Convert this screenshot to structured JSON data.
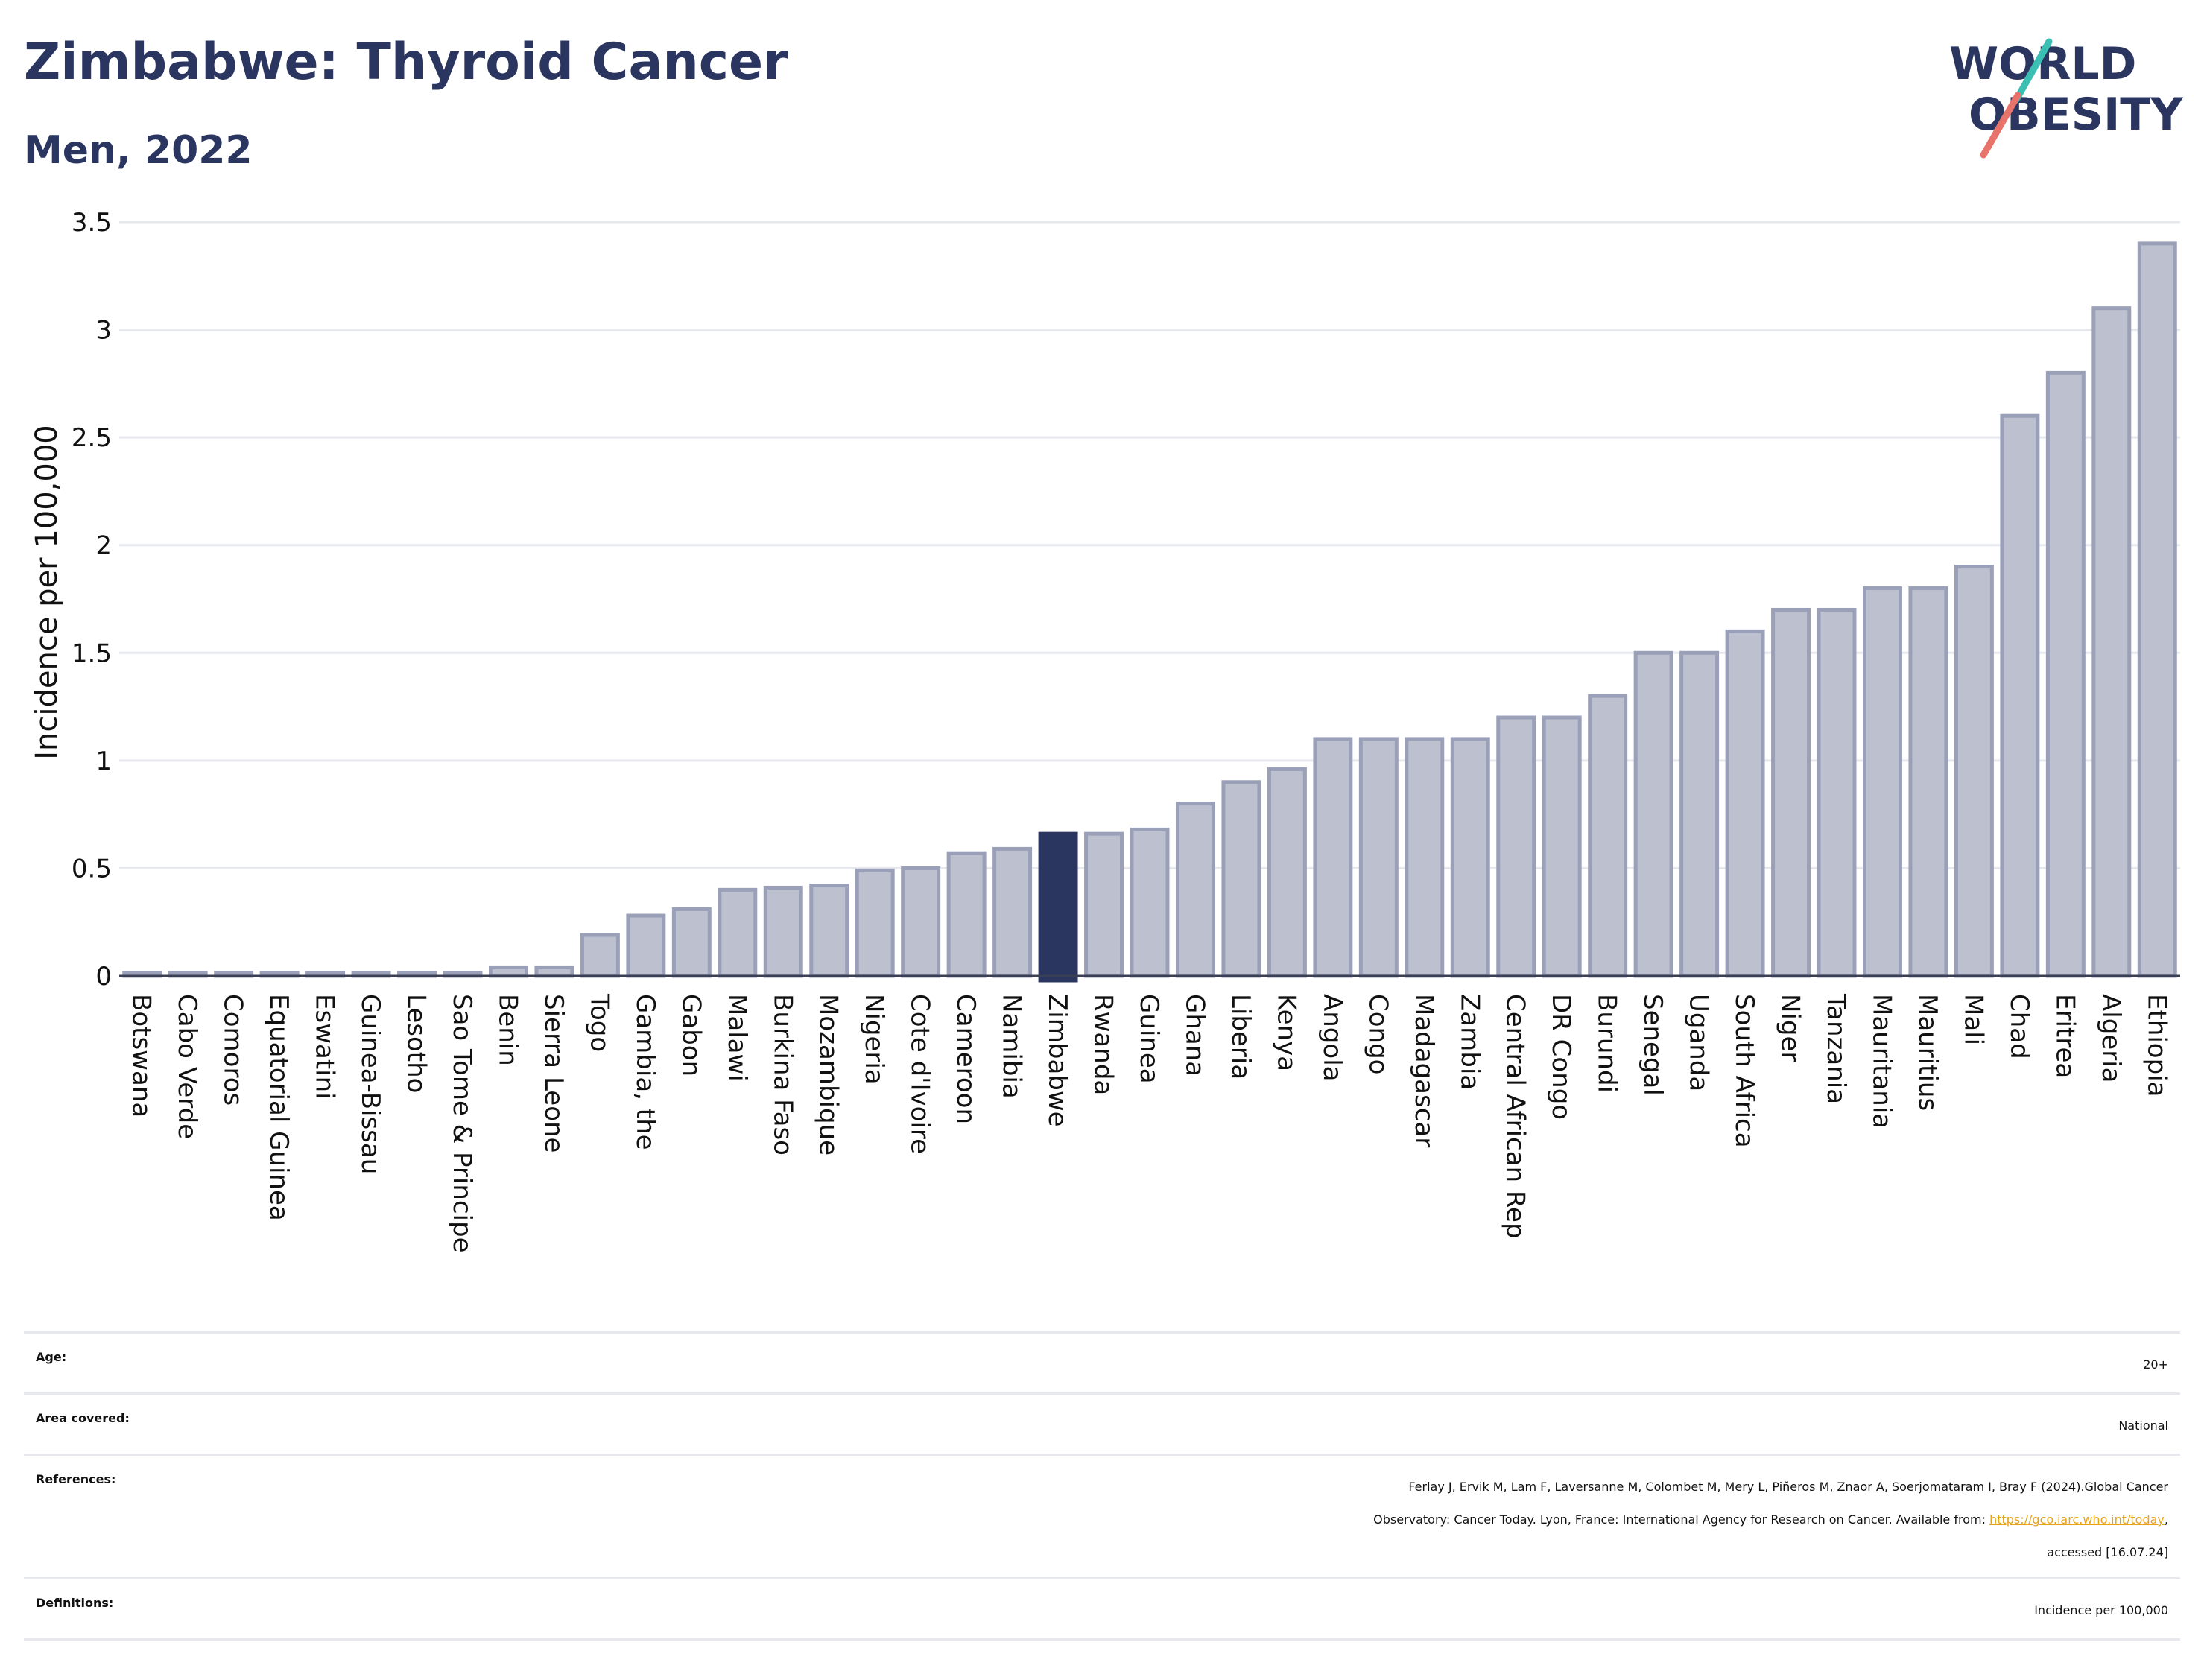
{
  "header": {
    "title": "Zimbabwe: Thyroid Cancer",
    "subtitle": "Men, 2022",
    "logo_line1": "WORLD",
    "logo_line2": "OBESITY"
  },
  "colors": {
    "title": "#2a3560",
    "bar": "#bcc0cf",
    "bar_border": "#9aa0b8",
    "highlight": "#2a3560",
    "logo_teal": "#3bbfb3",
    "logo_coral": "#e8736a",
    "link": "#e8a317"
  },
  "chart_data": {
    "type": "bar",
    "ylabel": "Incidence per 100,000",
    "ylim": [
      0,
      3.5
    ],
    "yticks": [
      "0",
      "0.5",
      "1",
      "1.5",
      "2",
      "2.5",
      "3",
      "3.5"
    ],
    "ytick_values": [
      0,
      0.5,
      1,
      1.5,
      2,
      2.5,
      3,
      3.5
    ],
    "grid": true,
    "highlight": "Zimbabwe",
    "categories": [
      "Botswana",
      "Cabo Verde",
      "Comoros",
      "Equatorial Guinea",
      "Eswatini",
      "Guinea-Bissau",
      "Lesotho",
      "Sao Tome & Principe",
      "Benin",
      "Sierra Leone",
      "Togo",
      "Gambia, the",
      "Gabon",
      "Malawi",
      "Burkina Faso",
      "Mozambique",
      "Nigeria",
      "Cote d'Ivoire",
      "Cameroon",
      "Namibia",
      "Zimbabwe",
      "Rwanda",
      "Guinea",
      "Ghana",
      "Liberia",
      "Kenya",
      "Angola",
      "Congo",
      "Madagascar",
      "Zambia",
      "Central African Rep",
      "DR Congo",
      "Burundi",
      "Senegal",
      "Uganda",
      "South Africa",
      "Niger",
      "Tanzania",
      "Mauritania",
      "Mauritius",
      "Mali",
      "Chad",
      "Eritrea",
      "Algeria",
      "Ethiopia"
    ],
    "values": [
      0,
      0,
      0,
      0,
      0,
      0,
      0,
      0,
      0.04,
      0.04,
      0.19,
      0.28,
      0.31,
      0.4,
      0.41,
      0.42,
      0.49,
      0.5,
      0.57,
      0.59,
      0.66,
      0.66,
      0.68,
      0.8,
      0.9,
      0.96,
      1.1,
      1.1,
      1.1,
      1.1,
      1.2,
      1.2,
      1.3,
      1.5,
      1.5,
      1.6,
      1.7,
      1.7,
      1.8,
      1.8,
      1.9,
      2.6,
      2.8,
      3.1,
      3.4
    ]
  },
  "meta": {
    "age_label": "Age:",
    "age_value": "20+",
    "area_label": "Area covered:",
    "area_value": "National",
    "references_label": "References:",
    "references_line1": "Ferlay J, Ervik M, Lam F, Laversanne M, Colombet M, Mery L, Piñeros M, Znaor A, Soerjomataram I, Bray F (2024).Global Cancer",
    "references_line2_pre": "Observatory: Cancer Today. Lyon, France: International Agency for Research on Cancer. Available from: ",
    "references_link": "https://gco.iarc.who.int/today",
    "references_line2_post": ",",
    "references_line3": "accessed [16.07.24]",
    "definitions_label": "Definitions:",
    "definitions_value": "Incidence per 100,000"
  }
}
